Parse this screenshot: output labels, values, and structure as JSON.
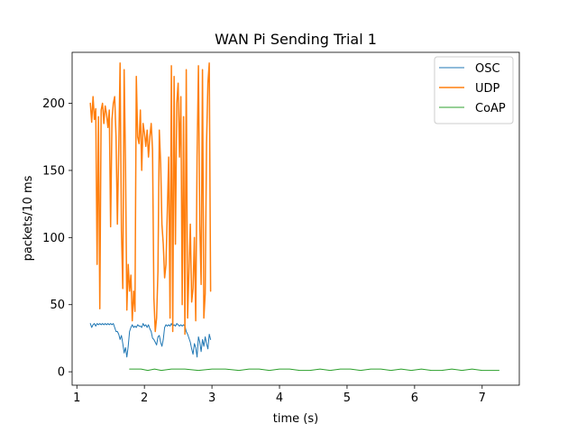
{
  "chart_data": {
    "type": "line",
    "title": "WAN Pi Sending Trial 1",
    "xlabel": "time (s)",
    "ylabel": "packets/10 ms",
    "xlim": [
      0.93,
      7.55
    ],
    "ylim": [
      -10,
      238
    ],
    "xticks": [
      1,
      2,
      3,
      4,
      5,
      6,
      7
    ],
    "yticks": [
      0,
      50,
      100,
      150,
      200
    ],
    "grid": false,
    "legend_position": "top-right",
    "series": [
      {
        "name": "OSC",
        "color": "#1f77b4",
        "stroke_width": 1.0,
        "x": [
          1.2,
          1.22,
          1.24,
          1.26,
          1.28,
          1.3,
          1.32,
          1.34,
          1.36,
          1.38,
          1.4,
          1.42,
          1.44,
          1.46,
          1.48,
          1.5,
          1.52,
          1.54,
          1.56,
          1.58,
          1.6,
          1.62,
          1.64,
          1.66,
          1.68,
          1.7,
          1.72,
          1.74,
          1.76,
          1.78,
          1.8,
          1.82,
          1.84,
          1.86,
          1.88,
          1.9,
          1.92,
          1.94,
          1.96,
          1.98,
          2.0,
          2.02,
          2.04,
          2.06,
          2.08,
          2.1,
          2.12,
          2.14,
          2.16,
          2.18,
          2.2,
          2.22,
          2.24,
          2.26,
          2.28,
          2.3,
          2.32,
          2.34,
          2.36,
          2.38,
          2.4,
          2.42,
          2.44,
          2.46,
          2.48,
          2.5,
          2.52,
          2.54,
          2.56,
          2.58,
          2.6,
          2.62,
          2.64,
          2.66,
          2.68,
          2.7,
          2.72,
          2.74,
          2.76,
          2.78,
          2.8,
          2.82,
          2.84,
          2.86,
          2.88,
          2.9,
          2.92,
          2.94,
          2.96,
          2.98
        ],
        "y": [
          36,
          33,
          35,
          36,
          34,
          36,
          35,
          36,
          35,
          36,
          35,
          36,
          35,
          36,
          35,
          36,
          35,
          36,
          33,
          30,
          30,
          28,
          24,
          27,
          21,
          14,
          18,
          11,
          19,
          30,
          33,
          35,
          33,
          34,
          33,
          35,
          34,
          34,
          33,
          36,
          34,
          35,
          33,
          35,
          32,
          30,
          25,
          24,
          22,
          20,
          26,
          27,
          22,
          19,
          24,
          33,
          35,
          34,
          35,
          34,
          36,
          34,
          35,
          34,
          36,
          35,
          34,
          35,
          34,
          35,
          34,
          30,
          28,
          25,
          22,
          17,
          13,
          21,
          18,
          11,
          26,
          22,
          15,
          24,
          19,
          26,
          21,
          17,
          28,
          24
        ]
      },
      {
        "name": "UDP",
        "color": "#ff7f0e",
        "stroke_width": 1.5,
        "x": [
          1.2,
          1.22,
          1.24,
          1.26,
          1.28,
          1.3,
          1.32,
          1.34,
          1.36,
          1.38,
          1.4,
          1.42,
          1.44,
          1.46,
          1.48,
          1.5,
          1.52,
          1.54,
          1.56,
          1.58,
          1.6,
          1.62,
          1.64,
          1.66,
          1.68,
          1.7,
          1.72,
          1.74,
          1.76,
          1.78,
          1.8,
          1.82,
          1.84,
          1.86,
          1.88,
          1.9,
          1.92,
          1.94,
          1.96,
          1.98,
          2.0,
          2.02,
          2.04,
          2.06,
          2.08,
          2.1,
          2.12,
          2.14,
          2.16,
          2.18,
          2.2,
          2.22,
          2.24,
          2.26,
          2.28,
          2.3,
          2.32,
          2.34,
          2.36,
          2.38,
          2.4,
          2.42,
          2.44,
          2.46,
          2.48,
          2.5,
          2.52,
          2.54,
          2.56,
          2.58,
          2.6,
          2.62,
          2.64,
          2.66,
          2.68,
          2.7,
          2.72,
          2.74,
          2.76,
          2.78,
          2.8,
          2.82,
          2.84,
          2.86,
          2.88,
          2.9,
          2.92,
          2.94,
          2.96,
          2.98
        ],
        "y": [
          200,
          186,
          205,
          188,
          196,
          80,
          190,
          47,
          195,
          200,
          185,
          198,
          192,
          182,
          195,
          108,
          188,
          200,
          205,
          175,
          110,
          165,
          230,
          105,
          62,
          225,
          155,
          46,
          80,
          60,
          72,
          38,
          60,
          45,
          220,
          175,
          170,
          195,
          150,
          185,
          178,
          168,
          180,
          160,
          175,
          185,
          165,
          55,
          30,
          40,
          75,
          180,
          155,
          110,
          95,
          70,
          80,
          120,
          160,
          40,
          228,
          30,
          220,
          95,
          200,
          215,
          160,
          205,
          50,
          190,
          28,
          225,
          40,
          75,
          110,
          52,
          62,
          100,
          38,
          160,
          228,
          110,
          65,
          225,
          40,
          58,
          170,
          215,
          230,
          60
        ]
      },
      {
        "name": "CoAP",
        "color": "#2ca02c",
        "stroke_width": 1.0,
        "x": [
          1.78,
          1.95,
          2.05,
          2.15,
          2.25,
          2.4,
          2.6,
          2.8,
          3.0,
          3.2,
          3.4,
          3.55,
          3.7,
          3.85,
          4.0,
          4.15,
          4.3,
          4.45,
          4.6,
          4.75,
          4.9,
          5.05,
          5.2,
          5.35,
          5.5,
          5.65,
          5.8,
          5.95,
          6.1,
          6.25,
          6.4,
          6.55,
          6.7,
          6.85,
          7.0,
          7.25
        ],
        "y": [
          2,
          2,
          1,
          2,
          1,
          2,
          2,
          1,
          2,
          2,
          1,
          2,
          2,
          1,
          2,
          2,
          1,
          1,
          2,
          1,
          2,
          2,
          1,
          2,
          2,
          1,
          2,
          1,
          2,
          1,
          1,
          2,
          1,
          2,
          1,
          1
        ]
      }
    ]
  }
}
